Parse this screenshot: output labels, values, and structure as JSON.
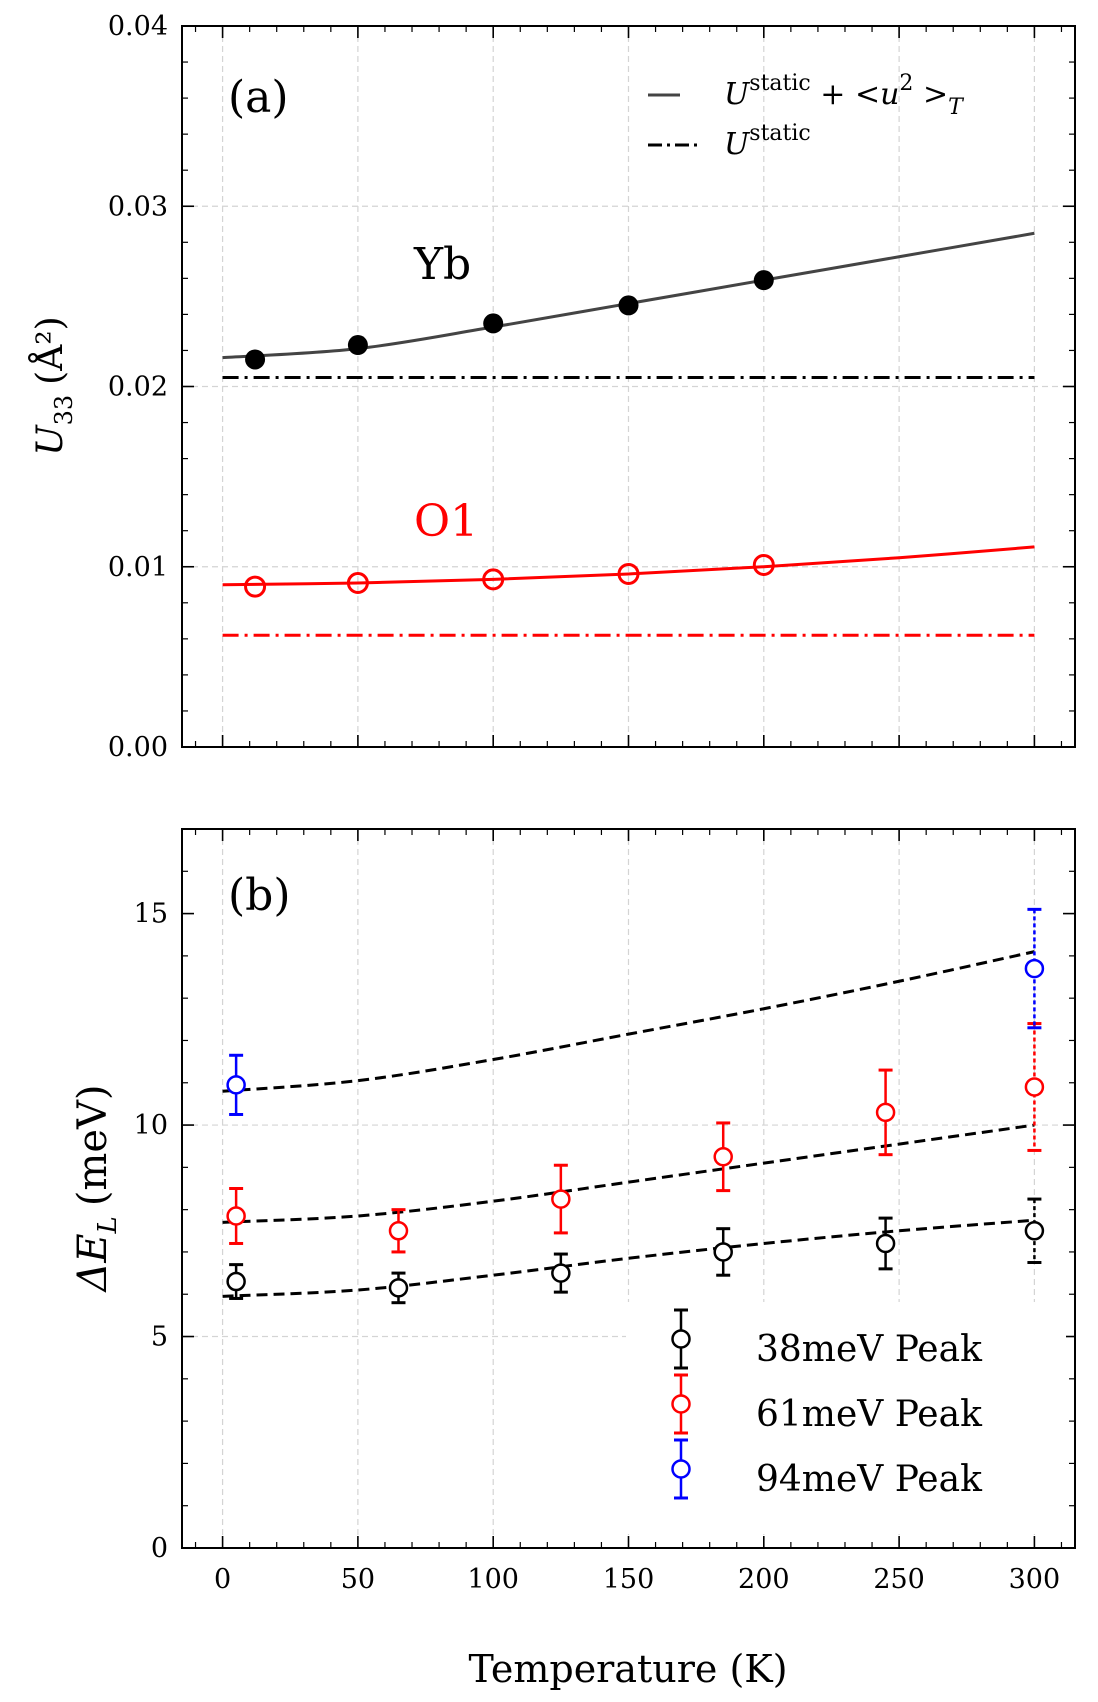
{
  "chart_data": [
    {
      "panel": "(a)",
      "type": "scatter",
      "xlabel": "",
      "ylabel_main": "U",
      "ylabel_sub": "33",
      "ylabel_unit": "(Å²)",
      "xlim": [
        -15,
        315
      ],
      "ylim": [
        0.0,
        0.04
      ],
      "xticks": [
        0,
        50,
        100,
        150,
        200,
        250,
        300
      ],
      "yticks": [
        0.0,
        0.01,
        0.02,
        0.03,
        0.04
      ],
      "ytick_labels": [
        "0.00",
        "0.01",
        "0.02",
        "0.03",
        "0.04"
      ],
      "grid": true,
      "legend_position": "top-right",
      "legend": [
        {
          "label_base": "U",
          "label_sup": "static",
          "label_rest": " + <u",
          "label_sup2": "2",
          "label_rest2": " >",
          "label_sub": "T",
          "style": "solid"
        },
        {
          "label_base": "U",
          "label_sup": "static",
          "style": "dashdot"
        }
      ],
      "series": [
        {
          "name": "Yb",
          "color": "#000000",
          "fit_color": "#444444",
          "marker": "filled-circle",
          "x": [
            12,
            50,
            100,
            150,
            200
          ],
          "y": [
            0.0215,
            0.0223,
            0.0235,
            0.0245,
            0.0259
          ],
          "fit": {
            "x": [
              0,
              50,
              100,
              150,
              200,
              250,
              300
            ],
            "y": [
              0.0216,
              0.0221,
              0.0233,
              0.0246,
              0.0259,
              0.0272,
              0.0285
            ]
          },
          "static": 0.0205
        },
        {
          "name": "O1",
          "color": "#ff0000",
          "fit_color": "#ff0000",
          "marker": "open-circle",
          "x": [
            12,
            50,
            100,
            150,
            200
          ],
          "y": [
            0.0089,
            0.0091,
            0.0093,
            0.0096,
            0.0101
          ],
          "fit": {
            "x": [
              0,
              50,
              100,
              150,
              200,
              250,
              300
            ],
            "y": [
              0.009,
              0.0091,
              0.0093,
              0.0096,
              0.01,
              0.0105,
              0.0111
            ]
          },
          "static": 0.0062
        }
      ]
    },
    {
      "panel": "(b)",
      "type": "scatter",
      "xlabel": "Temperature (K)",
      "ylabel": "ΔE",
      "ylabel_sub": "L",
      "ylabel_unit": "(meV)",
      "xlim": [
        -15,
        315
      ],
      "ylim": [
        0,
        17
      ],
      "xticks": [
        0,
        50,
        100,
        150,
        200,
        250,
        300
      ],
      "yticks": [
        0,
        5,
        10,
        15
      ],
      "ytick_labels": [
        "0",
        "5",
        "10",
        "15"
      ],
      "grid": true,
      "legend_position": "bottom-right",
      "fits": [
        {
          "x": [
            0,
            50,
            100,
            150,
            200,
            250,
            300
          ],
          "y": [
            5.95,
            6.1,
            6.45,
            6.85,
            7.2,
            7.5,
            7.75
          ]
        },
        {
          "x": [
            0,
            50,
            100,
            150,
            200,
            250,
            300
          ],
          "y": [
            7.7,
            7.85,
            8.2,
            8.65,
            9.1,
            9.55,
            10.0
          ]
        },
        {
          "x": [
            0,
            50,
            100,
            150,
            200,
            250,
            300
          ],
          "y": [
            10.8,
            11.05,
            11.55,
            12.15,
            12.75,
            13.4,
            14.1
          ]
        }
      ],
      "series": [
        {
          "name": "38meV Peak",
          "color": "#000000",
          "x": [
            5,
            65,
            125,
            185,
            245,
            300
          ],
          "y": [
            6.3,
            6.15,
            6.5,
            7.0,
            7.2,
            7.5
          ],
          "err": [
            0.4,
            0.35,
            0.45,
            0.55,
            0.6,
            0.75
          ]
        },
        {
          "name": "61meV Peak",
          "color": "#ff0000",
          "x": [
            5,
            65,
            125,
            185,
            245,
            300
          ],
          "y": [
            7.85,
            7.5,
            8.25,
            9.25,
            10.3,
            10.9
          ],
          "err": [
            0.65,
            0.5,
            0.8,
            0.8,
            1.0,
            1.5
          ]
        },
        {
          "name": "94meV Peak",
          "color": "#0000ff",
          "x": [
            5,
            300
          ],
          "y": [
            10.95,
            13.7
          ],
          "err": [
            0.7,
            1.4
          ]
        }
      ]
    }
  ]
}
